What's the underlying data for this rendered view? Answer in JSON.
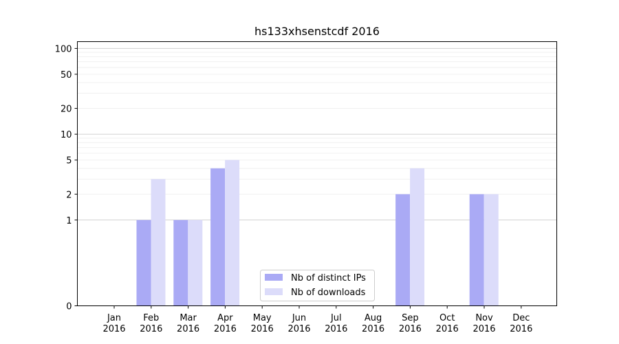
{
  "chart_data": {
    "type": "bar",
    "title": "hs133xhsenstcdf 2016",
    "xlabel": "",
    "ylabel": "",
    "y_scale": "symlog",
    "ylim": [
      0,
      120
    ],
    "grid": true,
    "legend_position": "bottom-center",
    "categories": [
      [
        "Jan",
        "2016"
      ],
      [
        "Feb",
        "2016"
      ],
      [
        "Mar",
        "2016"
      ],
      [
        "Apr",
        "2016"
      ],
      [
        "May",
        "2016"
      ],
      [
        "Jun",
        "2016"
      ],
      [
        "Jul",
        "2016"
      ],
      [
        "Aug",
        "2016"
      ],
      [
        "Sep",
        "2016"
      ],
      [
        "Oct",
        "2016"
      ],
      [
        "Nov",
        "2016"
      ],
      [
        "Dec",
        "2016"
      ]
    ],
    "y_ticks": [
      {
        "value": 0,
        "label": "0"
      },
      {
        "value": 1,
        "label": "1"
      },
      {
        "value": 2,
        "label": "2"
      },
      {
        "value": 5,
        "label": "5"
      },
      {
        "value": 10,
        "label": "10"
      },
      {
        "value": 20,
        "label": "20"
      },
      {
        "value": 50,
        "label": "50"
      },
      {
        "value": 100,
        "label": "100"
      }
    ],
    "series": [
      {
        "name": "Nb of distinct IPs",
        "color": "#aaaaf5",
        "values": [
          0,
          1,
          1,
          4,
          0,
          0,
          0,
          0,
          2,
          0,
          2,
          0
        ]
      },
      {
        "name": "Nb of downloads",
        "color": "#dcdcfa",
        "values": [
          0,
          3,
          1,
          5,
          0,
          0,
          0,
          0,
          4,
          0,
          2,
          0
        ]
      }
    ]
  }
}
